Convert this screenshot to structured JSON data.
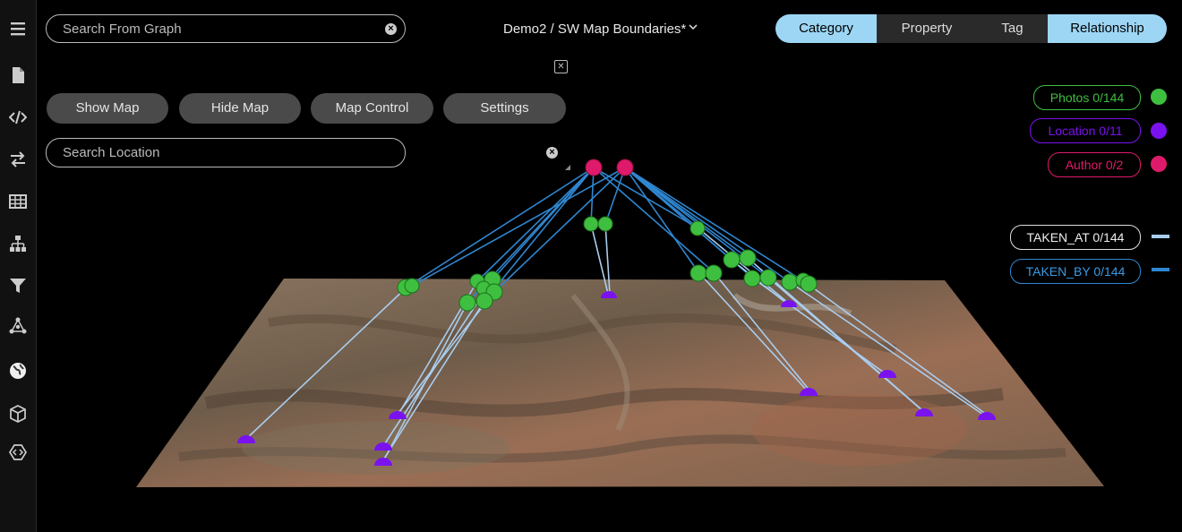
{
  "sidebar": {
    "icons": [
      "menu-icon",
      "document-icon",
      "code-icon",
      "swap-icon",
      "table-icon",
      "hierarchy-icon",
      "filter-icon",
      "graph-icon",
      "globe-icon",
      "cube-icon",
      "plugin-icon"
    ]
  },
  "search_graph": {
    "placeholder": "Search From Graph"
  },
  "header": {
    "title": "Demo2 / SW Map Boundaries*"
  },
  "view_tabs": [
    {
      "label": "Category",
      "active": true
    },
    {
      "label": "Property",
      "active": false
    },
    {
      "label": "Tag",
      "active": false
    },
    {
      "label": "Relationship",
      "active": true
    }
  ],
  "toolbar": {
    "show_map": "Show Map",
    "hide_map": "Hide Map",
    "map_control": "Map Control",
    "settings": "Settings"
  },
  "search_location": {
    "placeholder": "Search Location"
  },
  "legend": {
    "categories": [
      {
        "label": "Photos 0/144",
        "color": "#3fbf3f"
      },
      {
        "label": "Location 0/11",
        "color": "#7a12f0"
      },
      {
        "label": "Author 0/2",
        "color": "#e01a6a"
      }
    ],
    "relationships": [
      {
        "label": "TAKEN_AT 0/144",
        "color": "#a9cdee"
      },
      {
        "label": "TAKEN_BY 0/144",
        "color": "#2f86d0"
      }
    ]
  },
  "colors": {
    "accent": "#9dd6f5",
    "photo": "#3fbf3f",
    "location": "#7a12f0",
    "author": "#e01a6a"
  }
}
